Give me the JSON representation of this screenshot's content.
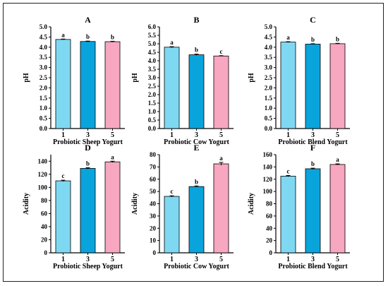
{
  "colors": {
    "bar1": "#7fd8f2",
    "bar2": "#0aa4dc",
    "bar3": "#f7a7c0",
    "axis": "#000000"
  },
  "chart_data": [
    {
      "type": "bar",
      "panel": "A",
      "xlabel": "Probiotic Sheep Yogurt",
      "ylabel": "pH",
      "categories": [
        "1",
        "3",
        "5"
      ],
      "values": [
        4.38,
        4.28,
        4.27
      ],
      "errors": [
        0.02,
        0.02,
        0.02
      ],
      "significance": [
        "a",
        "b",
        "b"
      ],
      "ylim": [
        0,
        5
      ],
      "yticks": [
        "0.0",
        "0.5",
        "1.0",
        "1.5",
        "2.0",
        "2.5",
        "3.0",
        "3.5",
        "4.0",
        "4.5",
        "5.0"
      ]
    },
    {
      "type": "bar",
      "panel": "B",
      "xlabel": "Probiotic Cow Yogurt",
      "ylabel": "pH",
      "categories": [
        "1",
        "3",
        "5"
      ],
      "values": [
        4.8,
        4.35,
        4.28
      ],
      "errors": [
        0.03,
        0.04,
        0.02
      ],
      "significance": [
        "a",
        "b",
        "c"
      ],
      "ylim": [
        0,
        6
      ],
      "yticks": [
        "0.0",
        "0.5",
        "1.0",
        "1.5",
        "2.0",
        "2.5",
        "3.0",
        "3.5",
        "4.0",
        "4.5",
        "5.0",
        "5.5",
        "6.0"
      ]
    },
    {
      "type": "bar",
      "panel": "C",
      "xlabel": "Probiotic Blend Yogurt",
      "ylabel": "pH",
      "categories": [
        "1",
        "3",
        "5"
      ],
      "values": [
        4.25,
        4.15,
        4.17
      ],
      "errors": [
        0.02,
        0.02,
        0.02
      ],
      "significance": [
        "a",
        "b",
        "b"
      ],
      "ylim": [
        0,
        5
      ],
      "yticks": [
        "0.0",
        "0.5",
        "1.0",
        "1.5",
        "2.0",
        "2.5",
        "3.0",
        "3.5",
        "4.0",
        "4.5",
        "5.0"
      ]
    },
    {
      "type": "bar",
      "panel": "D",
      "xlabel": "Probiotic Sheep Yogurt",
      "ylabel": "Acidity",
      "categories": [
        "1",
        "3",
        "5"
      ],
      "values": [
        110,
        129,
        139
      ],
      "errors": [
        1.0,
        1.0,
        1.0
      ],
      "significance": [
        "c",
        "b",
        "a"
      ],
      "ylim": [
        0,
        150
      ],
      "yticks": [
        "0",
        "20",
        "40",
        "60",
        "80",
        "100",
        "120",
        "140"
      ]
    },
    {
      "type": "bar",
      "panel": "E",
      "xlabel": "Probiotic Cow Yogurt",
      "ylabel": "Acidity",
      "categories": [
        "1",
        "3",
        "5"
      ],
      "values": [
        46,
        54,
        72.5
      ],
      "errors": [
        0.5,
        0.5,
        1.2
      ],
      "significance": [
        "c",
        "b",
        "a"
      ],
      "ylim": [
        0,
        80
      ],
      "yticks": [
        "0",
        "10",
        "20",
        "30",
        "40",
        "50",
        "60",
        "70",
        "80"
      ]
    },
    {
      "type": "bar",
      "panel": "F",
      "xlabel": "Probiotic Blend Yogurt",
      "ylabel": "Acidity",
      "categories": [
        "1",
        "3",
        "5"
      ],
      "values": [
        125,
        137,
        144
      ],
      "errors": [
        1.0,
        1.0,
        1.0
      ],
      "significance": [
        "c",
        "b",
        "a"
      ],
      "ylim": [
        0,
        160
      ],
      "yticks": [
        "0",
        "20",
        "40",
        "60",
        "80",
        "100",
        "120",
        "140",
        "160"
      ]
    }
  ]
}
